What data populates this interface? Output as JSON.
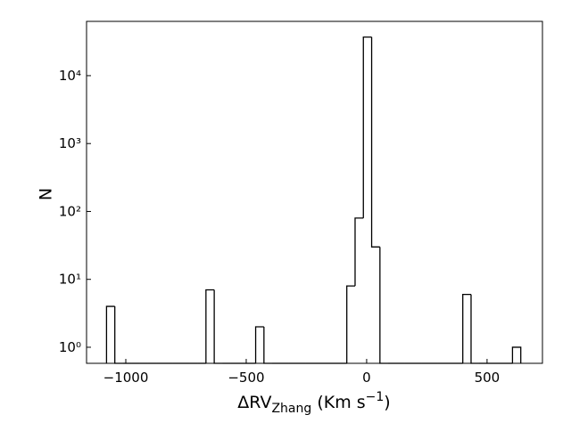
{
  "chart_data": {
    "type": "histogram",
    "xlabel": {
      "main": "ΔRV",
      "sub": "Zhang",
      "rest": " (Km s",
      "sup": "−1",
      "end": ")"
    },
    "ylabel": "N",
    "bins": [
      -1080,
      -1045.6,
      -1011.2,
      -976.8,
      -942.4,
      -908,
      -873.6,
      -839.2,
      -804.8,
      -770.4,
      -736,
      -701.6,
      -667.2,
      -632.8,
      -598.4,
      -564,
      -529.6,
      -495.2,
      -460.8,
      -426.4,
      -392,
      -357.6,
      -323.2,
      -288.8,
      -254.4,
      -220,
      -185.6,
      -151.2,
      -116.8,
      -82.4,
      -48,
      -13.6,
      20.8,
      55.2,
      89.6,
      124,
      158.4,
      192.8,
      227.2,
      261.6,
      296,
      330.4,
      364.8,
      399.2,
      433.6,
      468,
      502.4,
      536.8,
      571.2,
      605.6,
      640
    ],
    "values": [
      4,
      0,
      0,
      0,
      0,
      0,
      0,
      0,
      0,
      0,
      0,
      0,
      7,
      0,
      0,
      0,
      0,
      0,
      2,
      0,
      0,
      0,
      0,
      0,
      0,
      0,
      0,
      0,
      0,
      8,
      80,
      37000,
      30,
      0,
      0,
      0,
      0,
      0,
      0,
      0,
      0,
      0,
      0,
      6,
      0,
      0,
      0,
      0,
      0,
      1
    ],
    "color": "#000000",
    "xlim": [
      -1163,
      730
    ],
    "xticks": [
      {
        "value": -1000,
        "label": "−1000"
      },
      {
        "value": -500,
        "label": "−500"
      },
      0,
      500
    ],
    "ylim": [
      0.58,
      63000
    ],
    "log_y": true,
    "yticks": [
      {
        "value": 1,
        "label": "10⁰"
      },
      {
        "value": 10,
        "label": "10¹"
      },
      {
        "value": 100,
        "label": "10²"
      },
      {
        "value": 1000,
        "label": "10³"
      },
      {
        "value": 10000,
        "label": "10⁴"
      }
    ]
  }
}
